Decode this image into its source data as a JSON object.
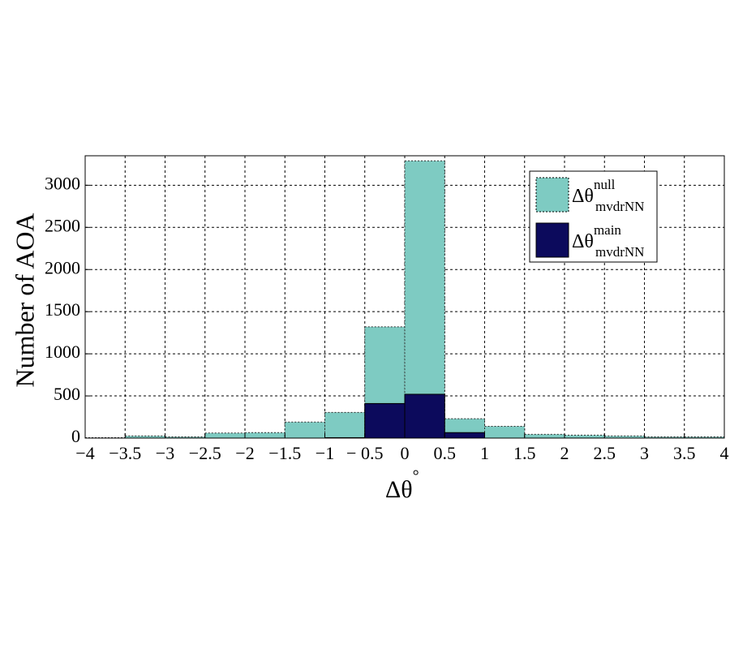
{
  "chart_data": {
    "type": "histogram",
    "y_label": "Number of AOA",
    "x_label": "Δθ",
    "x_label_superscript": "°",
    "bins": [
      -4,
      -3.5,
      -3,
      -2.5,
      -2,
      -1.5,
      -1,
      -0.5,
      0,
      0.5,
      1,
      1.5,
      2,
      2.5,
      3,
      3.5,
      4
    ],
    "series": [
      {
        "name": "Δθ",
        "superscript": "null",
        "subscript": "mvdrNN",
        "color": "#7ecbc2",
        "values": [
          5,
          25,
          15,
          60,
          65,
          190,
          305,
          1320,
          3290,
          230,
          140,
          45,
          35,
          25,
          15,
          15
        ]
      },
      {
        "name": "Δθ",
        "superscript": "main",
        "subscript": "mvdrNN",
        "color": "#0c0a5c",
        "values": [
          0,
          0,
          0,
          0,
          0,
          0,
          5,
          410,
          520,
          65,
          0,
          0,
          0,
          0,
          0,
          0
        ]
      }
    ],
    "xlim": [
      -4,
      4
    ],
    "xticks": [
      {
        "value": -4,
        "label": "−4"
      },
      {
        "value": -3.5,
        "label": "−3.5"
      },
      {
        "value": -3,
        "label": "−3"
      },
      {
        "value": -2.5,
        "label": "−2.5"
      },
      {
        "value": -2,
        "label": "−2"
      },
      {
        "value": -1.5,
        "label": "−1.5"
      },
      {
        "value": -1,
        "label": "−1"
      },
      {
        "value": -0.5,
        "label": "− 0.5"
      },
      0,
      0.5,
      1,
      1.5,
      2,
      2.5,
      3,
      3.5,
      4
    ],
    "ylim": [
      0,
      3350
    ],
    "yticks": [
      0,
      500,
      1000,
      1500,
      2000,
      2500,
      3000
    ],
    "grid": true,
    "legend": "upper right"
  }
}
